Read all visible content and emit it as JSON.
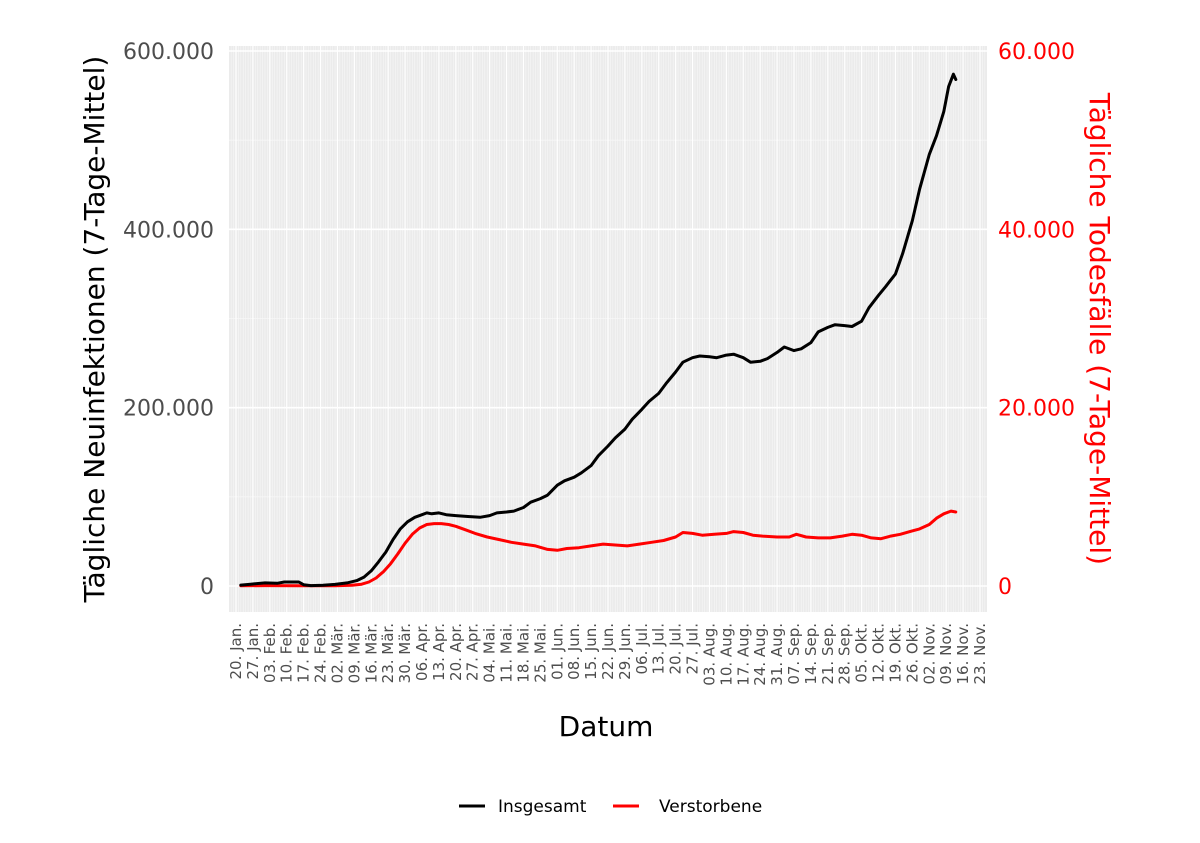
{
  "chart_data": {
    "type": "line",
    "title": "",
    "xlabel": "Datum",
    "ylabel": "Tägliche Neuinfektionen (7-Tage-Mittel)",
    "ylabel_right": "Tägliche Todesfälle (7-Tage-Mittel)",
    "ylim": [
      0,
      600000
    ],
    "ylim_right": [
      0,
      60000
    ],
    "xlim": [
      "2020-01-20",
      "2020-11-23"
    ],
    "yticks_left": [
      "0",
      "200.000",
      "400.000",
      "600.000"
    ],
    "yticks_right": [
      "0",
      "20.000",
      "40.000",
      "60.000"
    ],
    "x_tick_labels": [
      "20. Jan.",
      "27. Jan.",
      "03. Feb.",
      "10. Feb.",
      "17. Feb.",
      "24. Feb.",
      "02. Mär.",
      "09. Mär.",
      "16. Mär.",
      "23. Mär.",
      "30. Mär.",
      "06. Apr.",
      "13. Apr.",
      "20. Apr.",
      "27. Apr.",
      "04. Mai.",
      "11. Mai.",
      "18. Mai.",
      "25. Mai.",
      "01. Jun.",
      "08. Jun.",
      "15. Jun.",
      "22. Jun.",
      "29. Jun.",
      "06. Jul.",
      "13. Jul.",
      "20. Jul.",
      "27. Jul.",
      "03. Aug.",
      "10. Aug.",
      "17. Aug.",
      "24. Aug.",
      "31. Aug.",
      "07. Sep.",
      "14. Sep.",
      "21. Sep.",
      "28. Sep.",
      "05. Okt.",
      "12. Okt.",
      "19. Okt.",
      "26. Okt.",
      "02. Nov.",
      "09. Nov.",
      "16. Nov.",
      "23. Nov."
    ],
    "grid": true,
    "legend_position": "bottom",
    "colors": {
      "Insgesamt": "#000000",
      "Verstorbene": "#ff0000",
      "panel": "#ebebeb",
      "grid": "#ffffff"
    },
    "series": [
      {
        "name": "Insgesamt",
        "axis": "left",
        "points": [
          [
            "2020-01-22",
            1000
          ],
          [
            "2020-01-26",
            2000
          ],
          [
            "2020-02-01",
            3500
          ],
          [
            "2020-02-06",
            3000
          ],
          [
            "2020-02-09",
            4500
          ],
          [
            "2020-02-15",
            4500
          ],
          [
            "2020-02-17",
            1500
          ],
          [
            "2020-02-20",
            500
          ],
          [
            "2020-02-25",
            800
          ],
          [
            "2020-03-01",
            1800
          ],
          [
            "2020-03-06",
            3500
          ],
          [
            "2020-03-10",
            6000
          ],
          [
            "2020-03-13",
            10000
          ],
          [
            "2020-03-16",
            17000
          ],
          [
            "2020-03-19",
            27000
          ],
          [
            "2020-03-22",
            38000
          ],
          [
            "2020-03-25",
            52000
          ],
          [
            "2020-03-28",
            64000
          ],
          [
            "2020-03-31",
            72000
          ],
          [
            "2020-04-03",
            77000
          ],
          [
            "2020-04-06",
            80000
          ],
          [
            "2020-04-08",
            82000
          ],
          [
            "2020-04-10",
            81000
          ],
          [
            "2020-04-13",
            82000
          ],
          [
            "2020-04-16",
            80000
          ],
          [
            "2020-04-20",
            79000
          ],
          [
            "2020-04-25",
            78000
          ],
          [
            "2020-04-30",
            77000
          ],
          [
            "2020-05-04",
            79000
          ],
          [
            "2020-05-07",
            82000
          ],
          [
            "2020-05-11",
            83000
          ],
          [
            "2020-05-14",
            84000
          ],
          [
            "2020-05-18",
            88000
          ],
          [
            "2020-05-21",
            94000
          ],
          [
            "2020-05-25",
            98000
          ],
          [
            "2020-05-28",
            102000
          ],
          [
            "2020-06-01",
            113000
          ],
          [
            "2020-06-04",
            118000
          ],
          [
            "2020-06-08",
            122000
          ],
          [
            "2020-06-11",
            127000
          ],
          [
            "2020-06-15",
            135000
          ],
          [
            "2020-06-18",
            146000
          ],
          [
            "2020-06-22",
            157000
          ],
          [
            "2020-06-25",
            166000
          ],
          [
            "2020-06-29",
            176000
          ],
          [
            "2020-07-02",
            187000
          ],
          [
            "2020-07-06",
            198000
          ],
          [
            "2020-07-09",
            207000
          ],
          [
            "2020-07-13",
            216000
          ],
          [
            "2020-07-16",
            227000
          ],
          [
            "2020-07-20",
            240000
          ],
          [
            "2020-07-23",
            251000
          ],
          [
            "2020-07-27",
            256000
          ],
          [
            "2020-07-30",
            258000
          ],
          [
            "2020-08-03",
            257000
          ],
          [
            "2020-08-06",
            256000
          ],
          [
            "2020-08-10",
            259000
          ],
          [
            "2020-08-13",
            260000
          ],
          [
            "2020-08-17",
            256000
          ],
          [
            "2020-08-20",
            251000
          ],
          [
            "2020-08-24",
            252000
          ],
          [
            "2020-08-27",
            255000
          ],
          [
            "2020-08-31",
            262000
          ],
          [
            "2020-09-03",
            268000
          ],
          [
            "2020-09-07",
            264000
          ],
          [
            "2020-09-10",
            266000
          ],
          [
            "2020-09-14",
            273000
          ],
          [
            "2020-09-17",
            285000
          ],
          [
            "2020-09-21",
            290000
          ],
          [
            "2020-09-24",
            293000
          ],
          [
            "2020-09-28",
            292000
          ],
          [
            "2020-10-01",
            291000
          ],
          [
            "2020-10-05",
            297000
          ],
          [
            "2020-10-08",
            312000
          ],
          [
            "2020-10-12",
            326000
          ],
          [
            "2020-10-15",
            336000
          ],
          [
            "2020-10-19",
            350000
          ],
          [
            "2020-10-22",
            373000
          ],
          [
            "2020-10-26",
            410000
          ],
          [
            "2020-10-29",
            445000
          ],
          [
            "2020-11-02",
            484000
          ],
          [
            "2020-11-05",
            505000
          ],
          [
            "2020-11-08",
            532000
          ],
          [
            "2020-11-10",
            560000
          ],
          [
            "2020-11-12",
            574000
          ],
          [
            "2020-11-13",
            568000
          ]
        ]
      },
      {
        "name": "Verstorbene",
        "axis": "right",
        "points": [
          [
            "2020-01-22",
            20
          ],
          [
            "2020-02-01",
            40
          ],
          [
            "2020-02-15",
            30
          ],
          [
            "2020-03-01",
            30
          ],
          [
            "2020-03-08",
            80
          ],
          [
            "2020-03-12",
            200
          ],
          [
            "2020-03-15",
            450
          ],
          [
            "2020-03-18",
            900
          ],
          [
            "2020-03-21",
            1600
          ],
          [
            "2020-03-24",
            2500
          ],
          [
            "2020-03-27",
            3600
          ],
          [
            "2020-03-30",
            4800
          ],
          [
            "2020-04-02",
            5800
          ],
          [
            "2020-04-05",
            6500
          ],
          [
            "2020-04-08",
            6900
          ],
          [
            "2020-04-11",
            7000
          ],
          [
            "2020-04-14",
            7000
          ],
          [
            "2020-04-17",
            6900
          ],
          [
            "2020-04-20",
            6700
          ],
          [
            "2020-04-24",
            6300
          ],
          [
            "2020-04-28",
            5900
          ],
          [
            "2020-05-03",
            5500
          ],
          [
            "2020-05-08",
            5200
          ],
          [
            "2020-05-13",
            4900
          ],
          [
            "2020-05-18",
            4700
          ],
          [
            "2020-05-23",
            4500
          ],
          [
            "2020-05-28",
            4100
          ],
          [
            "2020-06-01",
            4000
          ],
          [
            "2020-06-05",
            4200
          ],
          [
            "2020-06-10",
            4300
          ],
          [
            "2020-06-15",
            4500
          ],
          [
            "2020-06-20",
            4700
          ],
          [
            "2020-06-25",
            4600
          ],
          [
            "2020-06-30",
            4500
          ],
          [
            "2020-07-05",
            4700
          ],
          [
            "2020-07-10",
            4900
          ],
          [
            "2020-07-15",
            5100
          ],
          [
            "2020-07-20",
            5500
          ],
          [
            "2020-07-23",
            6000
          ],
          [
            "2020-07-27",
            5900
          ],
          [
            "2020-07-31",
            5700
          ],
          [
            "2020-08-05",
            5800
          ],
          [
            "2020-08-10",
            5900
          ],
          [
            "2020-08-13",
            6100
          ],
          [
            "2020-08-17",
            6000
          ],
          [
            "2020-08-21",
            5700
          ],
          [
            "2020-08-25",
            5600
          ],
          [
            "2020-08-31",
            5500
          ],
          [
            "2020-09-05",
            5500
          ],
          [
            "2020-09-08",
            5800
          ],
          [
            "2020-09-12",
            5500
          ],
          [
            "2020-09-17",
            5400
          ],
          [
            "2020-09-22",
            5400
          ],
          [
            "2020-09-27",
            5600
          ],
          [
            "2020-10-01",
            5800
          ],
          [
            "2020-10-05",
            5700
          ],
          [
            "2020-10-09",
            5400
          ],
          [
            "2020-10-13",
            5300
          ],
          [
            "2020-10-17",
            5600
          ],
          [
            "2020-10-21",
            5800
          ],
          [
            "2020-10-25",
            6100
          ],
          [
            "2020-10-29",
            6400
          ],
          [
            "2020-11-02",
            6900
          ],
          [
            "2020-11-05",
            7600
          ],
          [
            "2020-11-08",
            8100
          ],
          [
            "2020-11-11",
            8400
          ],
          [
            "2020-11-13",
            8300
          ]
        ]
      }
    ]
  }
}
